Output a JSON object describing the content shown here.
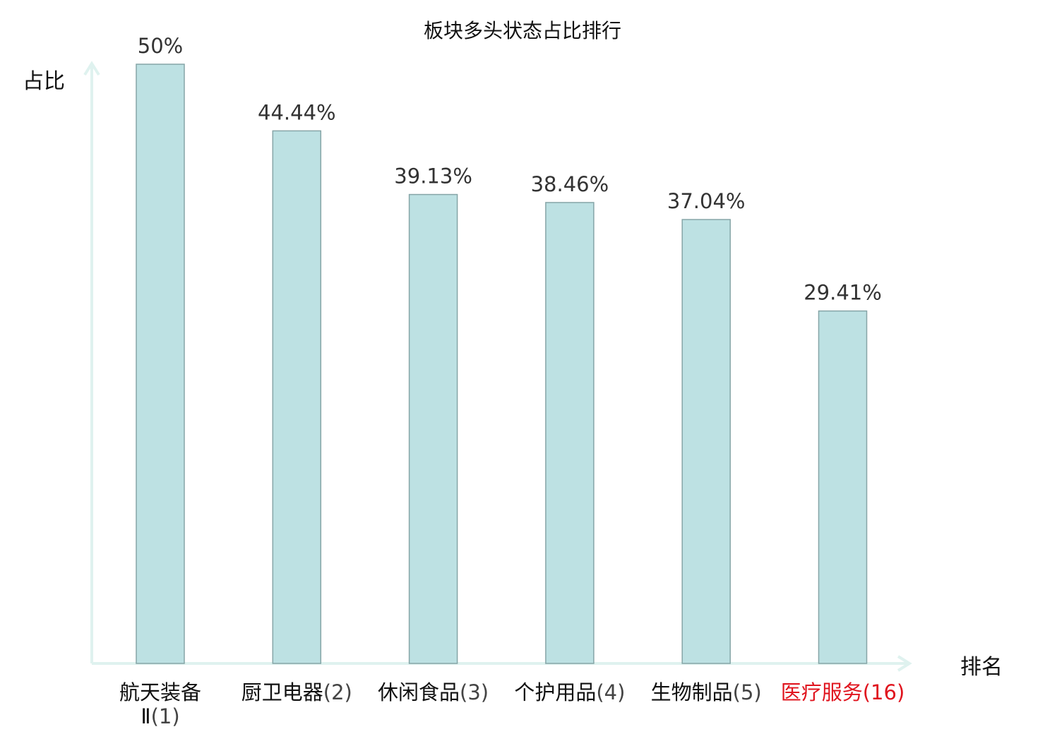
{
  "chart_data": {
    "type": "bar",
    "title": "板块多头状态占比排行",
    "ylabel": "占比",
    "xlabel": "排名",
    "ylim": [
      0,
      50
    ],
    "grid": false,
    "categories": [
      {
        "name": "航天装备Ⅱ",
        "rank": "(1)",
        "highlight": false
      },
      {
        "name": "厨卫电器",
        "rank": "(2)",
        "highlight": false
      },
      {
        "name": "休闲食品",
        "rank": "(3)",
        "highlight": false
      },
      {
        "name": "个护用品",
        "rank": "(4)",
        "highlight": false
      },
      {
        "name": "生物制品",
        "rank": "(5)",
        "highlight": false
      },
      {
        "name": "医疗服务",
        "rank": "(16)",
        "highlight": true
      }
    ],
    "values": [
      50,
      44.44,
      39.13,
      38.46,
      37.04,
      29.41
    ],
    "value_labels": [
      "50%",
      "44.44%",
      "39.13%",
      "38.46%",
      "37.04%",
      "29.41%"
    ]
  },
  "colors": {
    "bar_fill": "#bde1e3",
    "bar_stroke": "#86a5a7",
    "axis": "#dff2ef",
    "highlight_text": "#e0141e",
    "value_label": "#333333"
  }
}
